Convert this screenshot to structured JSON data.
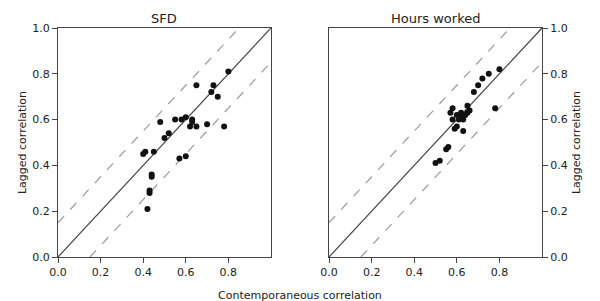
{
  "chart_data": [
    {
      "type": "scatter",
      "title": "SFD",
      "xlabel": "Contemporaneous correlation",
      "ylabel": "Lagged correlation",
      "xlim": [
        0.0,
        1.0
      ],
      "ylim": [
        0.0,
        1.0
      ],
      "xticks": [
        {
          "value": 0.0,
          "label": "0.0"
        },
        0.2,
        0.4,
        0.6,
        0.8
      ],
      "yticks": [
        {
          "value": 0.0,
          "label": "0.0"
        },
        0.2,
        0.4,
        0.6,
        0.8,
        {
          "value": 1.0,
          "label": "1.0"
        }
      ],
      "grid": false,
      "series": [
        {
          "type": "line",
          "line_style": "dashed",
          "color": "#999999",
          "x": [
            0.0,
            0.85
          ],
          "values": [
            0.15,
            1.0
          ]
        },
        {
          "type": "line",
          "line_style": "dashed",
          "color": "#999999",
          "x": [
            0.15,
            1.0
          ],
          "values": [
            0.0,
            0.85
          ]
        },
        {
          "type": "line",
          "line_style": "solid",
          "color": "#444444",
          "x": [
            0.0,
            1.0
          ],
          "values": [
            0.0,
            1.0
          ]
        },
        {
          "type": "scatter",
          "marker": "circle",
          "color": "#111111",
          "x": [
            0.4,
            0.41,
            0.42,
            0.43,
            0.43,
            0.44,
            0.44,
            0.45,
            0.48,
            0.5,
            0.52,
            0.55,
            0.57,
            0.58,
            0.6,
            0.6,
            0.62,
            0.63,
            0.63,
            0.65,
            0.65,
            0.7,
            0.72,
            0.73,
            0.75,
            0.78,
            0.8
          ],
          "values": [
            0.45,
            0.46,
            0.21,
            0.28,
            0.29,
            0.35,
            0.36,
            0.46,
            0.59,
            0.52,
            0.54,
            0.6,
            0.43,
            0.6,
            0.44,
            0.61,
            0.57,
            0.59,
            0.6,
            0.57,
            0.75,
            0.58,
            0.72,
            0.75,
            0.7,
            0.57,
            0.81
          ]
        }
      ]
    },
    {
      "type": "scatter",
      "title": "Hours worked",
      "ylabel": "Lagged correlation",
      "xlim": [
        0.0,
        1.0
      ],
      "ylim": [
        0.0,
        1.0
      ],
      "xticks": [
        {
          "value": 0.0,
          "label": "0.0"
        },
        0.2,
        0.4,
        0.6,
        0.8
      ],
      "yticks": [
        {
          "value": 0.0,
          "label": "0.0"
        },
        0.2,
        0.4,
        0.6,
        0.8,
        {
          "value": 1.0,
          "label": "1.0"
        }
      ],
      "grid": false,
      "series": [
        {
          "type": "line",
          "line_style": "dashed",
          "color": "#999999",
          "x": [
            0.0,
            0.85
          ],
          "values": [
            0.15,
            1.0
          ]
        },
        {
          "type": "line",
          "line_style": "dashed",
          "color": "#999999",
          "x": [
            0.15,
            1.0
          ],
          "values": [
            0.0,
            0.85
          ]
        },
        {
          "type": "line",
          "line_style": "solid",
          "color": "#444444",
          "x": [
            0.0,
            1.0
          ],
          "values": [
            0.0,
            1.0
          ]
        },
        {
          "type": "scatter",
          "marker": "circle",
          "color": "#111111",
          "x": [
            0.5,
            0.52,
            0.55,
            0.56,
            0.57,
            0.58,
            0.58,
            0.59,
            0.6,
            0.6,
            0.61,
            0.62,
            0.62,
            0.63,
            0.63,
            0.64,
            0.65,
            0.65,
            0.66,
            0.68,
            0.7,
            0.72,
            0.75,
            0.78,
            0.8
          ],
          "values": [
            0.41,
            0.42,
            0.47,
            0.48,
            0.63,
            0.6,
            0.65,
            0.56,
            0.57,
            0.62,
            0.6,
            0.62,
            0.63,
            0.55,
            0.6,
            0.62,
            0.63,
            0.66,
            0.64,
            0.72,
            0.75,
            0.78,
            0.8,
            0.65,
            0.82
          ]
        }
      ]
    }
  ]
}
